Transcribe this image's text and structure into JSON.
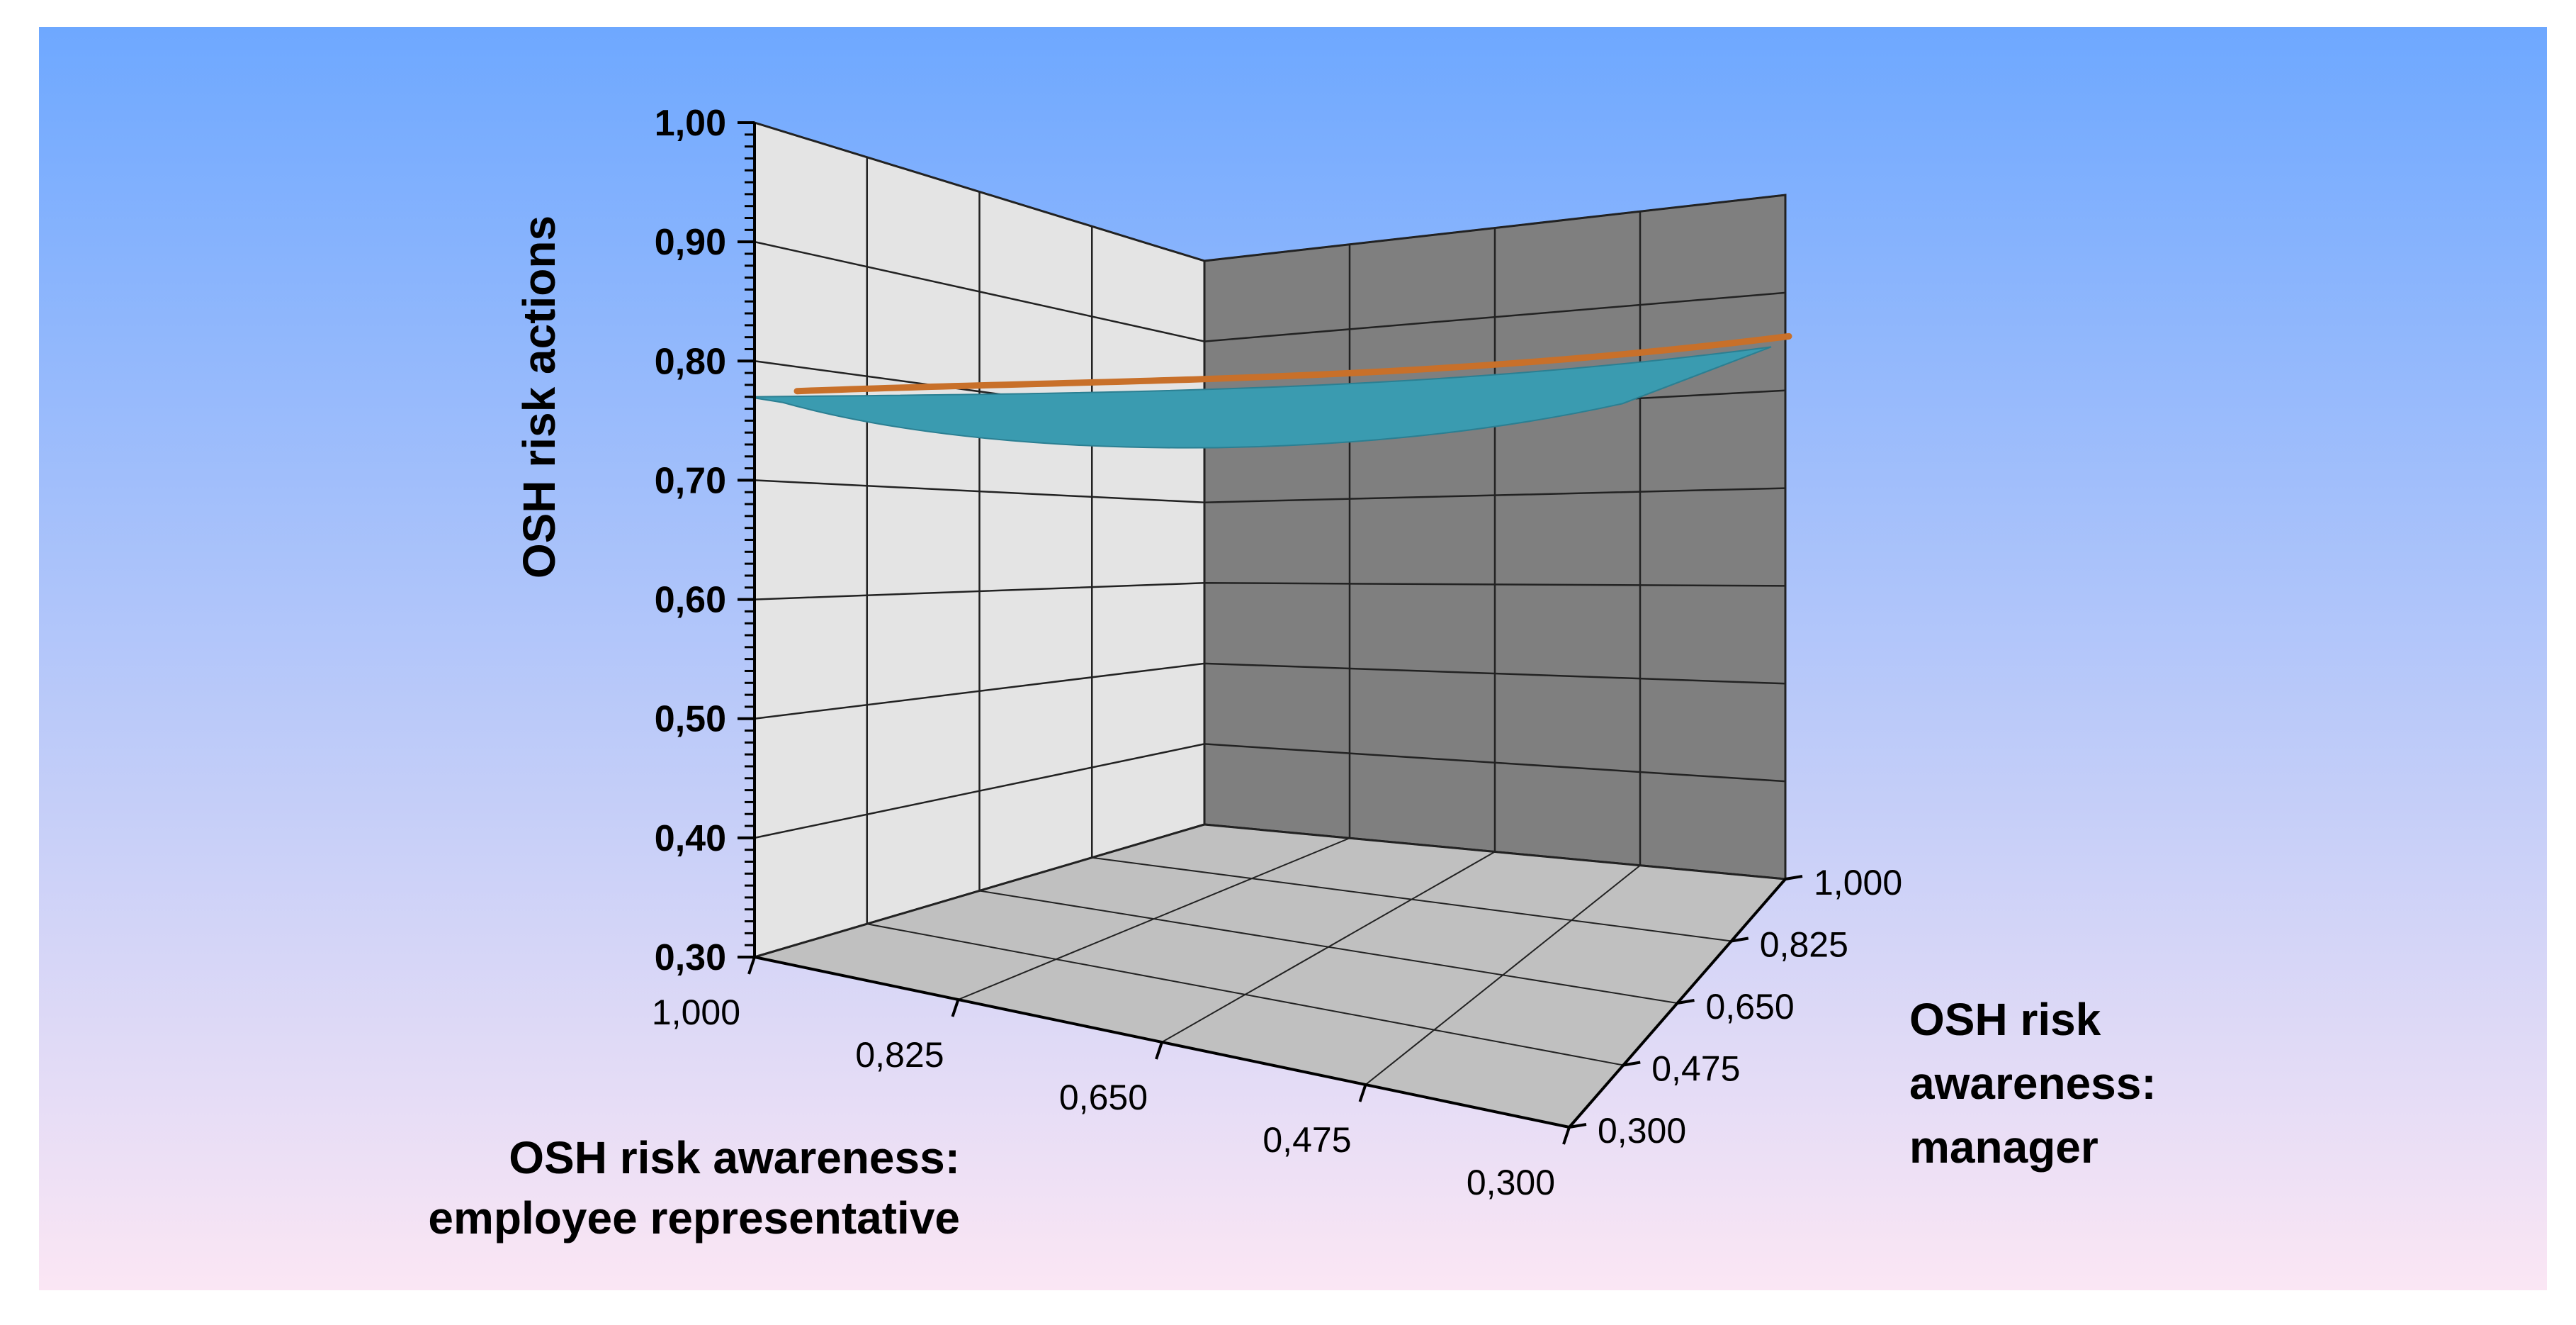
{
  "colors": {
    "background_top": "#6ea8ff",
    "background_bottom": "#fbe6f4",
    "back_wall_left": "#e4e4e4",
    "back_wall_right": "#7f7f7f",
    "floor": "#c0c0c0",
    "grid": "#222222",
    "surface_top": "#c8702a",
    "surface_under": "#3a9bb0"
  },
  "chart_data": {
    "type": "surface",
    "zlabel": "OSH risk actions",
    "xlabel_lines": [
      "OSH risk awareness:",
      "employee representative"
    ],
    "ylabel_lines": [
      "OSH risk",
      "awareness:",
      "manager"
    ],
    "z_ticks": [
      "1,00",
      "0,90",
      "0,80",
      "0,70",
      "0,60",
      "0,50",
      "0,40",
      "0,30"
    ],
    "z_values": [
      1.0,
      0.9,
      0.8,
      0.7,
      0.6,
      0.5,
      0.4,
      0.3
    ],
    "zlim": [
      0.3,
      1.0
    ],
    "x_ticks": [
      "1,000",
      "0,825",
      "0,650",
      "0,475",
      "0,300"
    ],
    "y_ticks": [
      "1,000",
      "0,825",
      "0,650",
      "0,475",
      "0,300"
    ],
    "surface_left_z": 0.77,
    "surface_right_z": 0.83
  }
}
